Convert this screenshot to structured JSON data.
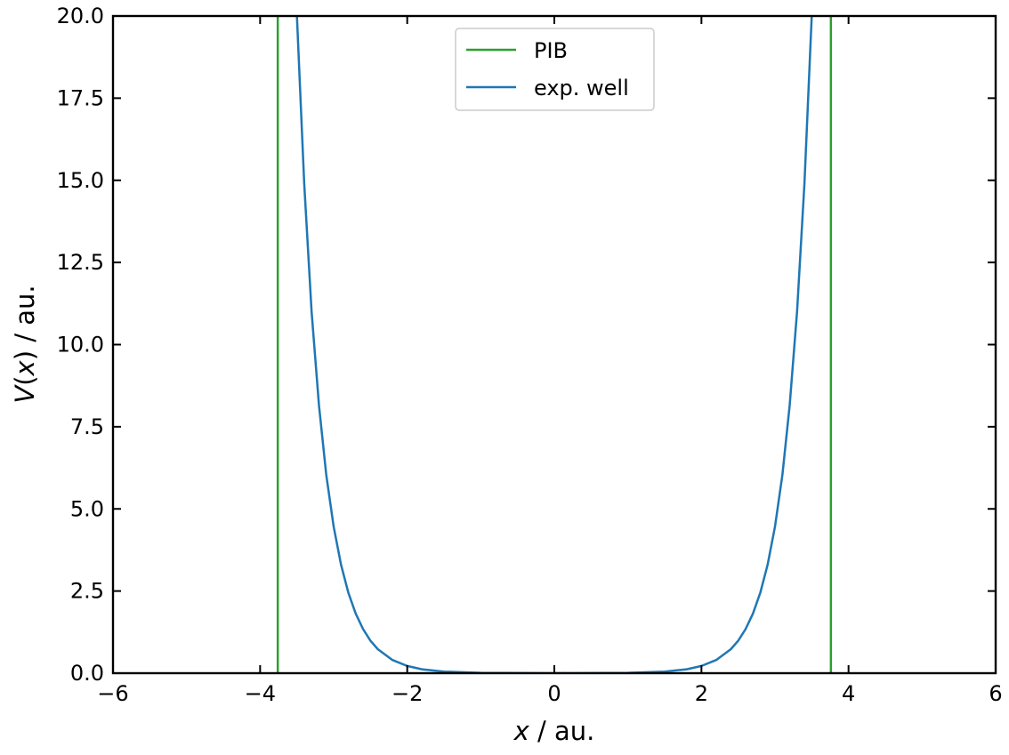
{
  "chart_data": {
    "type": "line",
    "xlabel": {
      "var": "x",
      "rest": " / au."
    },
    "ylabel": {
      "var1": "V",
      "open": "(",
      "var2": "x",
      "close": ")",
      "rest": " / au."
    },
    "xlim": [
      -6,
      6
    ],
    "ylim": [
      0,
      20
    ],
    "xticks": [
      -6,
      -4,
      -2,
      0,
      2,
      4,
      6
    ],
    "xtick_labels": [
      "−6",
      "−4",
      "−2",
      "0",
      "2",
      "4",
      "6"
    ],
    "yticks": [
      0,
      2.5,
      5,
      7.5,
      10,
      12.5,
      15,
      17.5,
      20
    ],
    "ytick_labels": [
      "0.0",
      "2.5",
      "5.0",
      "7.5",
      "10.0",
      "12.5",
      "15.0",
      "17.5",
      "20.0"
    ],
    "legend_position": "top-center",
    "series": [
      {
        "name": "PIB",
        "color": "#2ca02c",
        "kind": "vertical-walls",
        "x": [
          -3.76,
          3.76
        ]
      },
      {
        "name": "exp. well",
        "color": "#1f77b4",
        "kind": "curve",
        "x": [
          -3.5,
          -3.4,
          -3.3,
          -3.2,
          -3.1,
          -3.0,
          -2.9,
          -2.8,
          -2.7,
          -2.6,
          -2.5,
          -2.4,
          -2.2,
          -2.0,
          -1.8,
          -1.5,
          -1.0,
          0.0,
          1.0,
          1.5,
          1.8,
          2.0,
          2.2,
          2.4,
          2.5,
          2.6,
          2.7,
          2.8,
          2.9,
          3.0,
          3.1,
          3.2,
          3.3,
          3.4,
          3.5
        ],
        "y": [
          20.0,
          14.9,
          11.0,
          8.15,
          6.03,
          4.46,
          3.3,
          2.45,
          1.81,
          1.34,
          0.99,
          0.73,
          0.4,
          0.22,
          0.12,
          0.05,
          0.01,
          0.0,
          0.01,
          0.05,
          0.12,
          0.22,
          0.4,
          0.73,
          0.99,
          1.34,
          1.81,
          2.45,
          3.3,
          4.46,
          6.03,
          8.15,
          11.0,
          14.9,
          20.0
        ]
      }
    ]
  }
}
